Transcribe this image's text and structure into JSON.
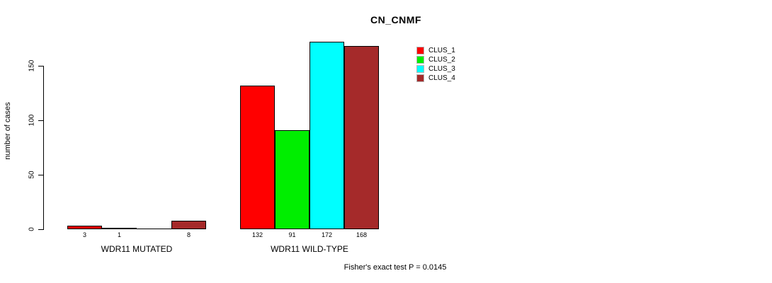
{
  "title": "CN_CNMF",
  "y_axis_label": "number of cases",
  "footer": "Fisher's exact test P = 0.0145",
  "colors": {
    "background": "#FFFFFF",
    "text": "#000000",
    "bar_border": "#000000",
    "clus_1": "#FF0000",
    "clus_2": "#00EE00",
    "clus_3": "#00FFFF",
    "clus_4": "#A52A2A"
  },
  "legend": {
    "position": "top-right",
    "entries": [
      {
        "label": "CLUS_1",
        "color": "#FF0000"
      },
      {
        "label": "CLUS_2",
        "color": "#00EE00"
      },
      {
        "label": "CLUS_3",
        "color": "#00FFFF"
      },
      {
        "label": "CLUS_4",
        "color": "#A52A2A"
      }
    ]
  },
  "chart_data": {
    "type": "bar",
    "title": "CN_CNMF",
    "xlabel": "",
    "ylabel": "number of cases",
    "ylim": [
      0,
      175
    ],
    "yticks": [
      0,
      50,
      100,
      150
    ],
    "grid": false,
    "legend_position": "top-right",
    "series": [
      "CLUS_1",
      "CLUS_2",
      "CLUS_3",
      "CLUS_4"
    ],
    "series_colors": [
      "#FF0000",
      "#00EE00",
      "#00FFFF",
      "#A52A2A"
    ],
    "groups": [
      {
        "label": "WDR11 MUTATED",
        "values": [
          3,
          1,
          0,
          8
        ],
        "bar_labels": [
          "3",
          "1",
          "",
          "8"
        ]
      },
      {
        "label": "WDR11 WILD-TYPE",
        "values": [
          132,
          91,
          172,
          168
        ],
        "bar_labels": [
          "132",
          "91",
          "172",
          "168"
        ]
      }
    ],
    "annotation": "Fisher's exact test P = 0.0145"
  }
}
